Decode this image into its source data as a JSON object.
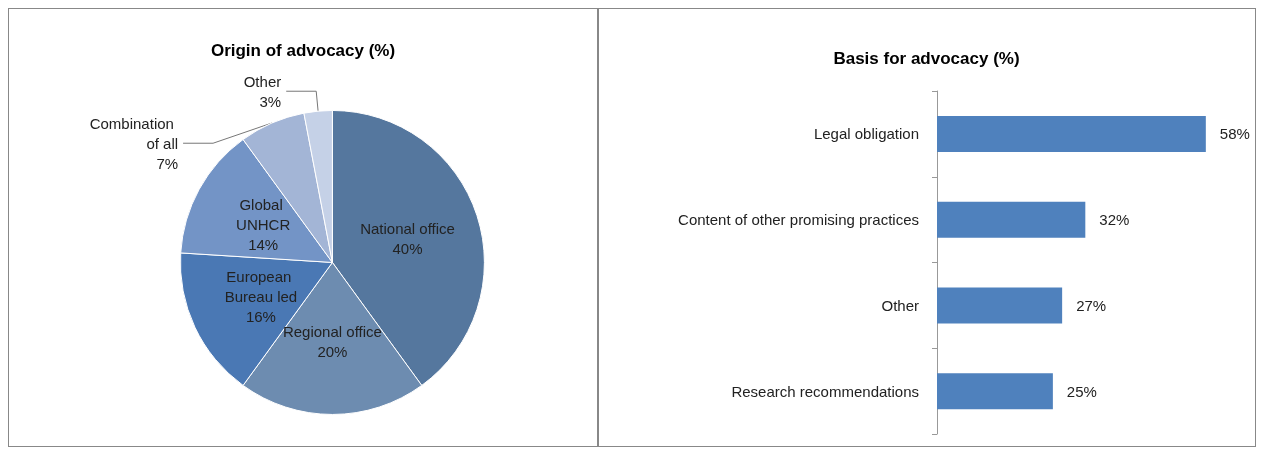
{
  "chart_data": [
    {
      "type": "pie",
      "title": "Origin of advocacy (%)",
      "categories": [
        "National office",
        "Regional office",
        "European Bureau led",
        "Global UNHCR",
        "Combination of all",
        "Other"
      ],
      "values": [
        40,
        20,
        16,
        14,
        7,
        3
      ],
      "colors": [
        "#55779e",
        "#6d8cb0",
        "#4a78b4",
        "#7394c6",
        "#a3b5d6",
        "#c5d1e7"
      ],
      "value_labels": [
        "40%",
        "20%",
        "16%",
        "14%",
        "7%",
        "3%"
      ],
      "legend": false
    },
    {
      "type": "bar",
      "orientation": "horizontal",
      "title": "Basis for advocacy (%)",
      "categories": [
        "Legal obligation",
        "Content of other promising practices",
        "Other",
        "Research recommendations"
      ],
      "values": [
        58,
        32,
        27,
        25
      ],
      "value_labels": [
        "58%",
        "32%",
        "27%",
        "25%"
      ],
      "color": "#4f81bd",
      "legend": false
    }
  ]
}
